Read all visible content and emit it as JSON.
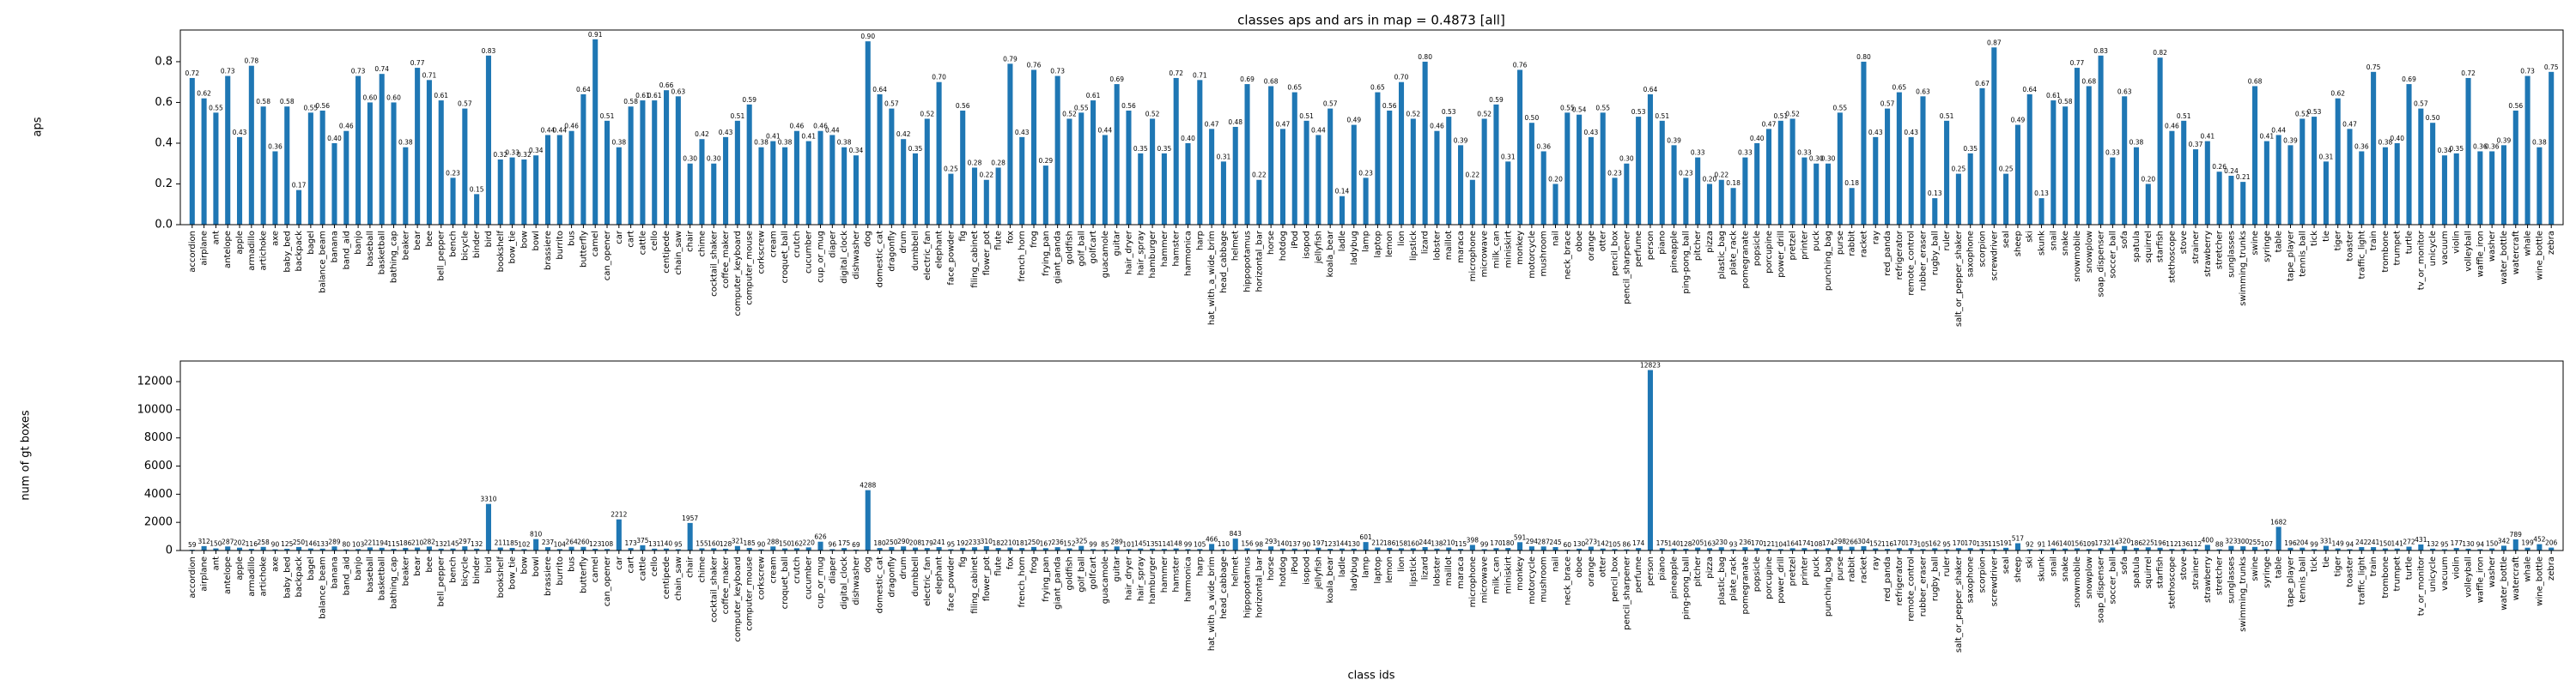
{
  "chart_data": [
    {
      "type": "bar",
      "title": "classes aps and ars in map = 0.4873 [all]",
      "ylabel": "aps",
      "color": "#1f77b4",
      "categories": [
        "accordion",
        "airplane",
        "ant",
        "antelope",
        "apple",
        "armadillo",
        "artichoke",
        "axe",
        "baby_bed",
        "backpack",
        "bagel",
        "balance_beam",
        "banana",
        "band_aid",
        "banjo",
        "baseball",
        "basketball",
        "bathing_cap",
        "beaker",
        "bear",
        "bee",
        "bell_pepper",
        "bench",
        "bicycle",
        "binder",
        "bird",
        "bookshelf",
        "bow_tie",
        "bow",
        "bowl",
        "brassiere",
        "burrito",
        "bus",
        "butterfly",
        "camel",
        "can_opener",
        "car",
        "cart",
        "cattle",
        "cello",
        "centipede",
        "chain_saw",
        "chair",
        "chime",
        "cocktail_shaker",
        "coffee_maker",
        "computer_keyboard",
        "computer_mouse",
        "corkscrew",
        "cream",
        "croquet_ball",
        "crutch",
        "cucumber",
        "cup_or_mug",
        "diaper",
        "digital_clock",
        "dishwasher",
        "dog",
        "domestic_cat",
        "dragonfly",
        "drum",
        "dumbbell",
        "electric_fan",
        "elephant",
        "face_powder",
        "fig",
        "filing_cabinet",
        "flower_pot",
        "flute",
        "fox",
        "french_horn",
        "frog",
        "frying_pan",
        "giant_panda",
        "goldfish",
        "golf_ball",
        "golfcart",
        "guacamole",
        "guitar",
        "hair_dryer",
        "hair_spray",
        "hamburger",
        "hammer",
        "hamster",
        "harmonica",
        "harp",
        "hat_with_a_wide_brim",
        "head_cabbage",
        "helmet",
        "hippopotamus",
        "horizontal_bar",
        "horse",
        "hotdog",
        "iPod",
        "isopod",
        "jellyfish",
        "koala_bear",
        "ladle",
        "ladybug",
        "lamp",
        "laptop",
        "lemon",
        "lion",
        "lipstick",
        "lizard",
        "lobster",
        "maillot",
        "maraca",
        "microphone",
        "microwave",
        "milk_can",
        "miniskirt",
        "monkey",
        "motorcycle",
        "mushroom",
        "nail",
        "neck_brace",
        "oboe",
        "orange",
        "otter",
        "pencil_box",
        "pencil_sharpener",
        "perfume",
        "person",
        "piano",
        "pineapple",
        "ping-pong_ball",
        "pitcher",
        "pizza",
        "plastic_bag",
        "plate_rack",
        "pomegranate",
        "popsicle",
        "porcupine",
        "power_drill",
        "pretzel",
        "printer",
        "puck",
        "punching_bag",
        "purse",
        "rabbit",
        "racket",
        "ray",
        "red_panda",
        "refrigerator",
        "remote_control",
        "rubber_eraser",
        "rugby_ball",
        "ruler",
        "salt_or_pepper_shaker",
        "saxophone",
        "scorpion",
        "screwdriver",
        "seal",
        "sheep",
        "ski",
        "skunk",
        "snail",
        "snake",
        "snowmobile",
        "snowplow",
        "soap_dispenser",
        "soccer_ball",
        "sofa",
        "spatula",
        "squirrel",
        "starfish",
        "stethoscope",
        "stove",
        "strainer",
        "strawberry",
        "stretcher",
        "sunglasses",
        "swimming_trunks",
        "swine",
        "syringe",
        "table",
        "tape_player",
        "tennis_ball",
        "tick",
        "tie",
        "tiger",
        "toaster",
        "traffic_light",
        "train",
        "trombone",
        "trumpet",
        "turtle",
        "tv_or_monitor",
        "unicycle",
        "vacuum",
        "violin",
        "volleyball",
        "waffle_iron",
        "washer",
        "water_bottle",
        "watercraft",
        "whale",
        "wine_bottle",
        "zebra"
      ],
      "values": [
        0.72,
        0.62,
        0.55,
        0.73,
        0.43,
        0.78,
        0.58,
        0.36,
        0.58,
        0.17,
        0.55,
        0.56,
        0.4,
        0.46,
        0.73,
        0.6,
        0.74,
        0.6,
        0.38,
        0.77,
        0.71,
        0.61,
        0.23,
        0.57,
        0.15,
        0.83,
        0.32,
        0.33,
        0.32,
        0.34,
        0.44,
        0.44,
        0.46,
        0.64,
        0.91,
        0.51,
        0.38,
        0.58,
        0.61,
        0.61,
        0.66,
        0.63,
        0.3,
        0.42,
        0.3,
        0.43,
        0.51,
        0.59,
        0.38,
        0.41,
        0.38,
        0.46,
        0.41,
        0.46,
        0.44,
        0.38,
        0.34,
        0.9,
        0.64,
        0.57,
        0.42,
        0.35,
        0.52,
        0.7,
        0.25,
        0.56,
        0.28,
        0.22,
        0.28,
        0.79,
        0.43,
        0.76,
        0.29,
        0.73,
        0.52,
        0.55,
        0.61,
        0.44,
        0.69,
        0.56,
        0.35,
        0.52,
        0.35,
        0.72,
        0.4,
        0.71,
        0.47,
        0.31,
        0.48,
        0.69,
        0.22,
        0.68,
        0.47,
        0.65,
        0.51,
        0.44,
        0.57,
        0.14,
        0.49,
        0.23,
        0.65,
        0.56,
        0.7,
        0.52,
        0.8,
        0.46,
        0.53,
        0.39,
        0.22,
        0.52,
        0.59,
        0.31,
        0.76,
        0.5,
        0.36,
        0.2,
        0.55,
        0.54,
        0.43,
        0.55,
        0.23,
        0.3,
        0.53,
        0.64,
        0.51,
        0.39,
        0.23,
        0.33,
        0.2,
        0.22,
        0.18,
        0.33,
        0.4,
        0.47,
        0.51,
        0.52,
        0.33,
        0.3,
        0.3,
        0.55,
        0.18,
        0.8,
        0.43,
        0.57,
        0.65,
        0.43,
        0.63,
        0.13,
        0.51,
        0.25,
        0.35,
        0.67,
        0.87,
        0.25,
        0.49,
        0.64,
        0.13,
        0.61,
        0.58,
        0.77,
        0.68,
        0.83,
        0.33,
        0.63,
        0.38,
        0.2,
        0.82,
        0.46,
        0.51,
        0.37,
        0.41,
        0.26,
        0.24,
        0.21,
        0.68,
        0.41,
        0.44,
        0.39,
        0.52,
        0.53,
        0.31,
        0.62,
        0.47,
        0.36,
        0.75,
        0.38,
        0.4,
        0.69,
        0.57,
        0.5,
        0.34,
        0.35,
        0.72,
        0.36,
        0.36,
        0.39,
        0.56,
        0.73,
        0.38,
        0.75
      ],
      "value_labels": [
        "0.72",
        "0.62",
        "0.55",
        "0.73",
        "0.43",
        "0.78",
        "0.58",
        "0.36",
        "0.58",
        "0.17",
        "0.55",
        "0.56",
        "0.40",
        "0.46",
        "0.73",
        "0.60",
        "0.74",
        "0.60",
        "0.38",
        "0.77",
        "0.71",
        "0.61",
        "0.23",
        "0.57",
        "0.15",
        "0.83",
        "0.32",
        "0.33",
        "0.32",
        "0.34",
        "0.44",
        "0.44",
        "0.46",
        "0.64",
        "0.91",
        "0.51",
        "0.38",
        "0.58",
        "0.61",
        "0.61",
        "0.66",
        "0.63",
        "0.30",
        "0.42",
        "0.30",
        "0.43",
        "0.51",
        "0.59",
        "0.38",
        "0.41",
        "0.38",
        "0.46",
        "0.41",
        "0.46",
        "0.44",
        "0.38",
        "0.34",
        "0.90",
        "0.64",
        "0.57",
        "0.42",
        "0.35",
        "0.52",
        "0.70",
        "0.25",
        "0.56",
        "0.28",
        "0.22",
        "0.28",
        "0.79",
        "0.43",
        "0.76",
        "0.29",
        "0.73",
        "0.52",
        "0.55",
        "0.61",
        "0.44",
        "0.69",
        "0.56",
        "0.35",
        "0.52",
        "0.35",
        "0.72",
        "0.40",
        "0.71",
        "0.47",
        "0.31",
        "0.48",
        "0.69",
        "0.22",
        "0.68",
        "0.47",
        "0.65",
        "0.51",
        "0.44",
        "0.57",
        "0.14",
        "0.49",
        "0.23",
        "0.65",
        "0.56",
        "0.70",
        "0.52",
        "0.80",
        "0.46",
        "0.53",
        "0.39",
        "0.22",
        "0.52",
        "0.59",
        "0.31",
        "0.76",
        "0.50",
        "0.36",
        "0.20",
        "0.55",
        "0.54",
        "0.43",
        "0.55",
        "0.23",
        "0.30",
        "0.53",
        "0.64",
        "0.51",
        "0.39",
        "0.23",
        "0.33",
        "0.20",
        "0.22",
        "0.18",
        "0.33",
        "0.40",
        "0.47",
        "0.51",
        "0.52",
        "0.33",
        "0.30",
        "0.30",
        "0.55",
        "0.18",
        "0.80",
        "0.43",
        "0.57",
        "0.65",
        "0.43",
        "0.63",
        "0.13",
        "0.51",
        "0.25",
        "0.35",
        "0.67",
        "0.87",
        "0.25",
        "0.49",
        "0.64",
        "0.13",
        "0.61",
        "0.58",
        "0.77",
        "0.68",
        "0.83",
        "0.33",
        "0.63",
        "0.38",
        "0.20",
        "0.82",
        "0.46",
        "0.51",
        "0.37",
        "0.41",
        "0.26",
        "0.24",
        "0.21",
        "0.68",
        "0.41",
        "0.44",
        "0.39",
        "0.52",
        "0.53",
        "0.31",
        "0.62",
        "0.47",
        "0.36",
        "0.75",
        "0.38",
        "0.40",
        "0.69",
        "0.57",
        "0.50",
        "0.34",
        "0.35",
        "0.72",
        "0.36",
        "0.36",
        "0.39",
        "0.56",
        "0.73",
        "0.38",
        "0.75"
      ],
      "ylim": [
        0,
        0.9555
      ],
      "yticks": [
        {
          "value": 0,
          "label": "0.0"
        },
        0.2,
        0.4,
        0.6,
        0.8
      ]
    },
    {
      "type": "bar",
      "ylabel": "num of gt boxes",
      "xlabel": "class ids",
      "color": "#1f77b4",
      "categories": [
        "accordion",
        "airplane",
        "ant",
        "antelope",
        "apple",
        "armadillo",
        "artichoke",
        "axe",
        "baby_bed",
        "backpack",
        "bagel",
        "balance_beam",
        "banana",
        "band_aid",
        "banjo",
        "baseball",
        "basketball",
        "bathing_cap",
        "beaker",
        "bear",
        "bee",
        "bell_pepper",
        "bench",
        "bicycle",
        "binder",
        "bird",
        "bookshelf",
        "bow_tie",
        "bow",
        "bowl",
        "brassiere",
        "burrito",
        "bus",
        "butterfly",
        "camel",
        "can_opener",
        "car",
        "cart",
        "cattle",
        "cello",
        "centipede",
        "chain_saw",
        "chair",
        "chime",
        "cocktail_shaker",
        "coffee_maker",
        "computer_keyboard",
        "computer_mouse",
        "corkscrew",
        "cream",
        "croquet_ball",
        "crutch",
        "cucumber",
        "cup_or_mug",
        "diaper",
        "digital_clock",
        "dishwasher",
        "dog",
        "domestic_cat",
        "dragonfly",
        "drum",
        "dumbbell",
        "electric_fan",
        "elephant",
        "face_powder",
        "fig",
        "filing_cabinet",
        "flower_pot",
        "flute",
        "fox",
        "french_horn",
        "frog",
        "frying_pan",
        "giant_panda",
        "goldfish",
        "golf_ball",
        "golfcart",
        "guacamole",
        "guitar",
        "hair_dryer",
        "hair_spray",
        "hamburger",
        "hammer",
        "hamster",
        "harmonica",
        "harp",
        "hat_with_a_wide_brim",
        "head_cabbage",
        "helmet",
        "hippopotamus",
        "horizontal_bar",
        "horse",
        "hotdog",
        "iPod",
        "isopod",
        "jellyfish",
        "koala_bear",
        "ladle",
        "ladybug",
        "lamp",
        "laptop",
        "lemon",
        "lion",
        "lipstick",
        "lizard",
        "lobster",
        "maillot",
        "maraca",
        "microphone",
        "microwave",
        "milk_can",
        "miniskirt",
        "monkey",
        "motorcycle",
        "mushroom",
        "nail",
        "neck_brace",
        "oboe",
        "orange",
        "otter",
        "pencil_box",
        "pencil_sharpener",
        "perfume",
        "person",
        "piano",
        "pineapple",
        "ping-pong_ball",
        "pitcher",
        "pizza",
        "plastic_bag",
        "plate_rack",
        "pomegranate",
        "popsicle",
        "porcupine",
        "power_drill",
        "pretzel",
        "printer",
        "puck",
        "punching_bag",
        "purse",
        "rabbit",
        "racket",
        "ray",
        "red_panda",
        "refrigerator",
        "remote_control",
        "rubber_eraser",
        "rugby_ball",
        "ruler",
        "salt_or_pepper_shaker",
        "saxophone",
        "scorpion",
        "screwdriver",
        "seal",
        "sheep",
        "ski",
        "skunk",
        "snail",
        "snake",
        "snowmobile",
        "snowplow",
        "soap_dispenser",
        "soccer_ball",
        "sofa",
        "spatula",
        "squirrel",
        "starfish",
        "stethoscope",
        "stove",
        "strainer",
        "strawberry",
        "stretcher",
        "sunglasses",
        "swimming_trunks",
        "swine",
        "syringe",
        "table",
        "tape_player",
        "tennis_ball",
        "tick",
        "tie",
        "tiger",
        "toaster",
        "traffic_light",
        "train",
        "trombone",
        "trumpet",
        "turtle",
        "tv_or_monitor",
        "unicycle",
        "vacuum",
        "violin",
        "volleyball",
        "waffle_iron",
        "washer",
        "water_bottle",
        "watercraft",
        "whale",
        "wine_bottle",
        "zebra"
      ],
      "values": [
        59,
        312,
        150,
        287,
        202,
        116,
        258,
        90,
        125,
        250,
        146,
        133,
        289,
        80,
        103,
        221,
        194,
        115,
        186,
        210,
        282,
        132,
        145,
        297,
        132,
        3310,
        211,
        185,
        102,
        810,
        237,
        104,
        264,
        260,
        123,
        108,
        2212,
        173,
        375,
        131,
        140,
        95,
        1957,
        155,
        160,
        128,
        321,
        185,
        90,
        288,
        150,
        162,
        220,
        626,
        96,
        175,
        69,
        4288,
        180,
        250,
        290,
        208,
        179,
        241,
        95,
        192,
        233,
        310,
        182,
        210,
        181,
        250,
        167,
        236,
        152,
        325,
        99,
        85,
        289,
        101,
        145,
        135,
        114,
        148,
        99,
        105,
        466,
        110,
        843,
        156,
        98,
        293,
        140,
        137,
        90,
        197,
        123,
        144,
        130,
        601,
        212,
        186,
        158,
        160,
        244,
        138,
        210,
        115,
        398,
        99,
        170,
        180,
        591,
        294,
        287,
        245,
        60,
        130,
        273,
        142,
        105,
        86,
        174,
        12823,
        175,
        140,
        128,
        205,
        163,
        230,
        93,
        236,
        170,
        121,
        104,
        164,
        174,
        108,
        174,
        298,
        266,
        304,
        152,
        116,
        170,
        173,
        105,
        162,
        95,
        170,
        170,
        135,
        115,
        191,
        517,
        92,
        91,
        146,
        140,
        156,
        109,
        173,
        214,
        320,
        186,
        225,
        196,
        112,
        136,
        112,
        400,
        88,
        323,
        300,
        255,
        107,
        1682,
        196,
        204,
        99,
        331,
        149,
        94,
        242,
        241,
        150,
        141,
        272,
        431,
        132,
        95,
        177,
        130,
        94,
        150,
        342,
        789,
        199,
        452,
        206
      ],
      "ylim": [
        0,
        13464
      ],
      "yticks": [
        0,
        2000,
        4000,
        6000,
        8000,
        10000,
        12000
      ]
    }
  ]
}
